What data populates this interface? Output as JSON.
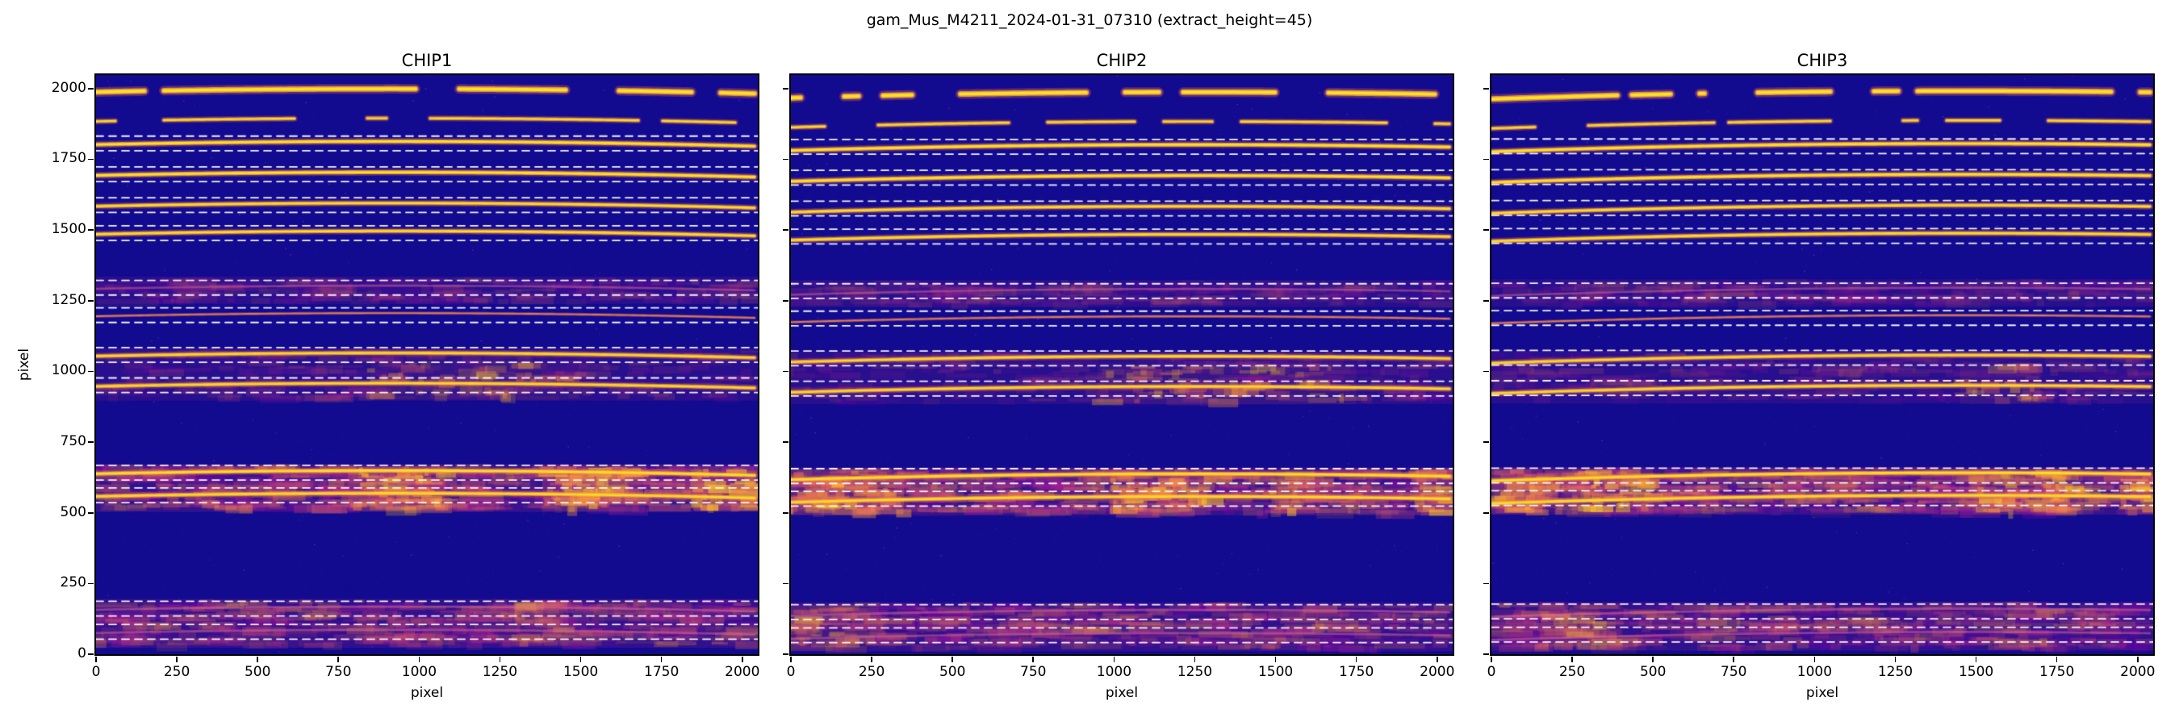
{
  "figure_title": "gam_Mus_M4211_2024-01-31_07310  (extract_height=45)",
  "axes": {
    "xlabel": "pixel",
    "ylabel": "pixel",
    "xlim": [
      0,
      2048
    ],
    "ylim": [
      0,
      2048
    ],
    "xticks": [
      0,
      250,
      500,
      750,
      1000,
      1250,
      1500,
      1750,
      2000
    ],
    "yticks": [
      0,
      250,
      500,
      750,
      1000,
      1250,
      1500,
      1750,
      2000
    ]
  },
  "chart_data": {
    "type": "heatmap",
    "title": "gam_Mus_M4211_2024-01-31_07310  (extract_height=45)",
    "extract_height": 45,
    "dash_half_height": 26,
    "curvature": 14,
    "orders": [
      {
        "y": 1992,
        "amp": 1.0,
        "w": 5.0,
        "dash": false,
        "gaps": true
      },
      {
        "y": 1888,
        "amp": 0.85,
        "w": 3.2,
        "dash": false,
        "gaps": true
      },
      {
        "y": 1806,
        "amp": 0.95,
        "w": 3.6,
        "dash": true
      },
      {
        "y": 1697,
        "amp": 0.95,
        "w": 3.6,
        "dash": true
      },
      {
        "y": 1588,
        "amp": 0.9,
        "w": 3.4,
        "dash": true
      },
      {
        "y": 1489,
        "amp": 0.9,
        "w": 3.4,
        "dash": true
      },
      {
        "y": 1296,
        "amp": 0.2,
        "w": 2.6,
        "dash": true,
        "band": {
          "y": [
            1238,
            1336
          ],
          "s": 0.2
        }
      },
      {
        "y": 1199,
        "amp": 0.45,
        "w": 2.4,
        "dash": true
      },
      {
        "y": 1058,
        "amp": 0.85,
        "w": 3.4,
        "dash": true,
        "band": {
          "y": [
            896,
            1082
          ],
          "s": 0.22
        }
      },
      {
        "y": 951,
        "amp": 0.85,
        "w": 3.4,
        "dash": true
      },
      {
        "y": 642,
        "amp": 0.9,
        "w": 3.6,
        "dash": true,
        "band": {
          "y": [
            503,
            672
          ],
          "s": 0.55
        }
      },
      {
        "y": 562,
        "amp": 0.85,
        "w": 3.6,
        "dash": true
      },
      {
        "y": 161,
        "amp": 0.25,
        "w": 2.8,
        "dash": true,
        "band": {
          "y": [
            22,
            196
          ],
          "s": 0.45
        }
      },
      {
        "y": 79,
        "amp": 0.22,
        "w": 2.8,
        "dash": true
      }
    ],
    "panels": [
      {
        "title": "CHIP1",
        "seed": 101,
        "dy": 0,
        "tilt": -3,
        "patches": [
          {
            "x": [
              780,
              1080
            ],
            "y": [
              505,
              665
            ],
            "s": 0.85
          },
          {
            "x": [
              1380,
              1680
            ],
            "y": [
              505,
              665
            ],
            "s": 0.8
          },
          {
            "x": [
              1850,
              2048
            ],
            "y": [
              505,
              665
            ],
            "s": 0.85
          },
          {
            "x": [
              850,
              1500
            ],
            "y": [
              900,
              1040
            ],
            "s": 0.3
          },
          {
            "x": [
              1300,
              1460
            ],
            "y": [
              30,
              190
            ],
            "s": 0.45
          }
        ]
      },
      {
        "title": "CHIP2",
        "seed": 202,
        "dy": -12,
        "tilt": 6,
        "patches": [
          {
            "x": [
              0,
              350
            ],
            "y": [
              505,
              665
            ],
            "s": 0.9
          },
          {
            "x": [
              990,
              1300
            ],
            "y": [
              505,
              665
            ],
            "s": 0.85
          },
          {
            "x": [
              1500,
              1620
            ],
            "y": [
              505,
              665
            ],
            "s": 0.7
          },
          {
            "x": [
              1930,
              2048
            ],
            "y": [
              505,
              665
            ],
            "s": 0.85
          },
          {
            "x": [
              950,
              1750
            ],
            "y": [
              895,
              1040
            ],
            "s": 0.35
          },
          {
            "x": [
              0,
              200
            ],
            "y": [
              30,
              190
            ],
            "s": 0.45
          }
        ]
      },
      {
        "title": "CHIP3",
        "seed": 303,
        "dy": -10,
        "tilt": 12,
        "patches": [
          {
            "x": [
              0,
              160
            ],
            "y": [
              505,
              665
            ],
            "s": 0.8
          },
          {
            "x": [
              250,
              500
            ],
            "y": [
              505,
              665
            ],
            "s": 0.85
          },
          {
            "x": [
              1490,
              1830
            ],
            "y": [
              505,
              665
            ],
            "s": 0.8
          },
          {
            "x": [
              1960,
              2048
            ],
            "y": [
              505,
              665
            ],
            "s": 0.9
          },
          {
            "x": [
              1450,
              1700
            ],
            "y": [
              895,
              1040
            ],
            "s": 0.4
          },
          {
            "x": [
              150,
              400
            ],
            "y": [
              30,
              190
            ],
            "s": 0.4
          }
        ]
      }
    ]
  },
  "colors": {
    "background": "#120a8f",
    "trace_core": "#f7e225",
    "trace_mid": "#fca636",
    "trace_halo": "#e16462",
    "band_palette": [
      "#7e03a8",
      "#a82296",
      "#cb4679",
      "#e56b5d",
      "#f89441",
      "#fdc527"
    ],
    "dashed_line": "#ffffff",
    "text": "#000000"
  }
}
